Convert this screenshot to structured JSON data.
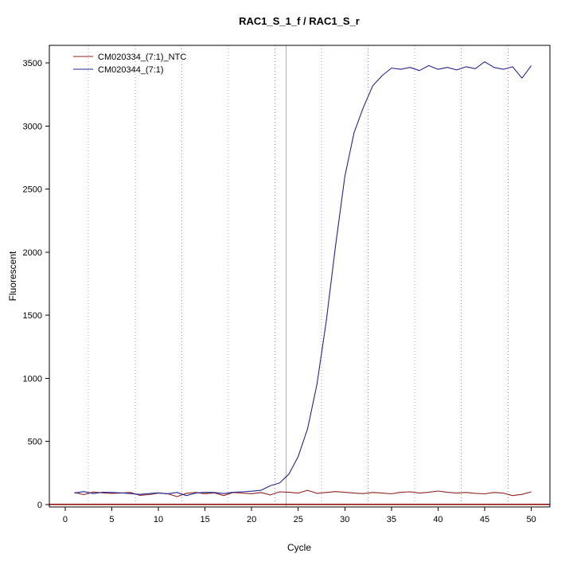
{
  "title": "RAC1_S_1_f / RAC1_S_r",
  "axes": {
    "xlabel": "Cycle",
    "ylabel": "Fluorescent"
  },
  "chart_data": {
    "type": "line",
    "title": "RAC1_S_1_f / RAC1_S_r",
    "xlabel": "Cycle",
    "ylabel": "Fluorescent",
    "xlim": [
      -1.7,
      52
    ],
    "ylim": [
      -20,
      3640
    ],
    "x_ticks": [
      0,
      5,
      10,
      15,
      20,
      25,
      30,
      35,
      40,
      45,
      50
    ],
    "y_ticks": [
      0,
      500,
      1000,
      1500,
      2000,
      2500,
      3000,
      3500
    ],
    "grid_x_dotted": [
      2.5,
      7.5,
      12.5,
      17.5,
      22.5,
      27.5,
      32.5,
      37.5,
      42.5,
      47.5
    ],
    "grid_color": "#c8a0a0",
    "ct_line": {
      "x": 23.7,
      "color": "#00ffff"
    },
    "zero_line": {
      "y": 0,
      "color": "#8b0000"
    },
    "legend_position": "top-left",
    "x": [
      1,
      2,
      3,
      4,
      5,
      6,
      7,
      8,
      9,
      10,
      11,
      12,
      13,
      14,
      15,
      16,
      17,
      18,
      19,
      20,
      21,
      22,
      23,
      24,
      25,
      26,
      27,
      28,
      29,
      30,
      31,
      32,
      33,
      34,
      35,
      36,
      37,
      38,
      39,
      40,
      41,
      42,
      43,
      44,
      45,
      46,
      47,
      48,
      49,
      50
    ],
    "series": [
      {
        "name": "CM020334_(7:1)_NTC",
        "color": "#8b2323",
        "values": [
          95,
          78,
          98,
          92,
          88,
          90,
          95,
          72,
          78,
          90,
          85,
          62,
          88,
          95,
          85,
          92,
          70,
          95,
          90,
          85,
          95,
          75,
          100,
          96,
          90,
          112,
          88,
          95,
          102,
          96,
          90,
          86,
          95,
          90,
          84,
          96,
          100,
          90,
          96,
          106,
          96,
          90,
          95,
          88,
          84,
          95,
          90,
          70,
          80,
          100
        ]
      },
      {
        "name": "CM020344_(7:1)",
        "color": "#26268b",
        "values": [
          90,
          102,
          86,
          96,
          95,
          92,
          86,
          80,
          86,
          92,
          85,
          95,
          70,
          90,
          96,
          95,
          86,
          96,
          100,
          105,
          112,
          148,
          170,
          240,
          380,
          600,
          950,
          1450,
          2050,
          2600,
          2950,
          3150,
          3320,
          3400,
          3460,
          3450,
          3465,
          3440,
          3480,
          3450,
          3465,
          3445,
          3470,
          3455,
          3510,
          3465,
          3450,
          3470,
          3380,
          3480
        ]
      }
    ]
  }
}
